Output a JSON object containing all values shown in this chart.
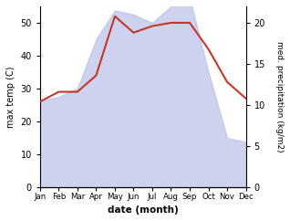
{
  "months": [
    "Jan",
    "Feb",
    "Mar",
    "Apr",
    "May",
    "Jun",
    "Jul",
    "Aug",
    "Sep",
    "Oct",
    "Nov",
    "Dec"
  ],
  "x": [
    0,
    1,
    2,
    3,
    4,
    5,
    6,
    7,
    8,
    9,
    10,
    11
  ],
  "temp": [
    26,
    29,
    29,
    34,
    52,
    47,
    49,
    50,
    50,
    42,
    32,
    27
  ],
  "precip": [
    10.5,
    11,
    12,
    18,
    21.5,
    21,
    20,
    22,
    23,
    14,
    6,
    5.5
  ],
  "temp_color": "#c0392b",
  "precip_fill_color": "#b8c0e8",
  "left_ylabel": "max temp (C)",
  "right_ylabel": "med. precipitation (kg/m2)",
  "xlabel": "date (month)",
  "left_ylim": [
    0,
    55
  ],
  "right_ylim": [
    0,
    22
  ],
  "left_yticks": [
    0,
    10,
    20,
    30,
    40,
    50
  ],
  "right_yticks": [
    0,
    5,
    10,
    15,
    20
  ],
  "bg_color": "#ffffff"
}
